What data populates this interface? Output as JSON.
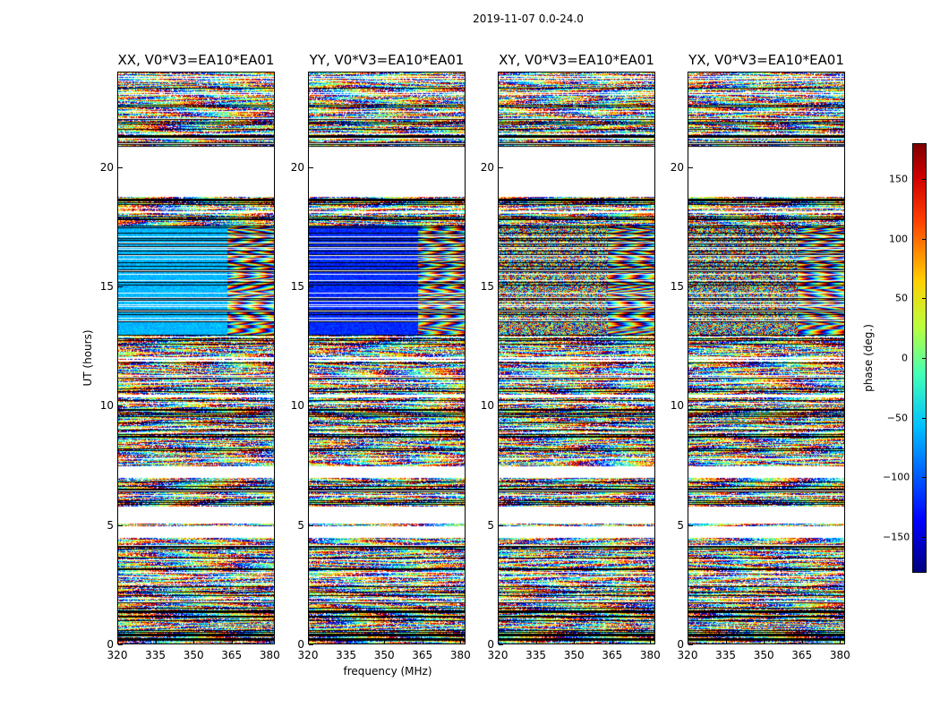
{
  "title": "2019-11-07 0.0-24.0",
  "chart_data": {
    "type": "heatmap",
    "xlabel": "frequency (MHz)",
    "ylabel": "UT (hours)",
    "xlim": [
      320,
      382
    ],
    "ylim": [
      0,
      24
    ],
    "xticks": [
      320,
      335,
      350,
      365,
      380
    ],
    "yticks": [
      0,
      5,
      10,
      15,
      20
    ],
    "panels": [
      {
        "title": "XX, V0*V3=EA10*EA01",
        "pol": "XX"
      },
      {
        "title": "YY, V0*V3=EA10*EA01",
        "pol": "YY"
      },
      {
        "title": "XY, V0*V3=EA10*EA01",
        "pol": "XY"
      },
      {
        "title": "YX, V0*V3=EA10*EA01",
        "pol": "YX"
      }
    ],
    "colorbar": {
      "label": "phase (deg.)",
      "range": [
        -180,
        180
      ],
      "ticks": [
        -150,
        -100,
        -50,
        0,
        50,
        100,
        150
      ],
      "tick_labels": [
        "−150",
        "−100",
        "−50",
        "0",
        "50",
        "100",
        "150"
      ],
      "colormap": "jet"
    },
    "coherent_band_hours": [
      13.0,
      17.6
    ],
    "coherent_phase_deg": {
      "XX": -70,
      "YY": -120
    },
    "fringe_start_mhz": 363,
    "flagged_blocks_hours": [
      [
        4.5,
        5.0
      ],
      [
        5.1,
        5.8
      ],
      [
        7.0,
        7.5
      ],
      [
        18.8,
        20.9
      ]
    ]
  }
}
